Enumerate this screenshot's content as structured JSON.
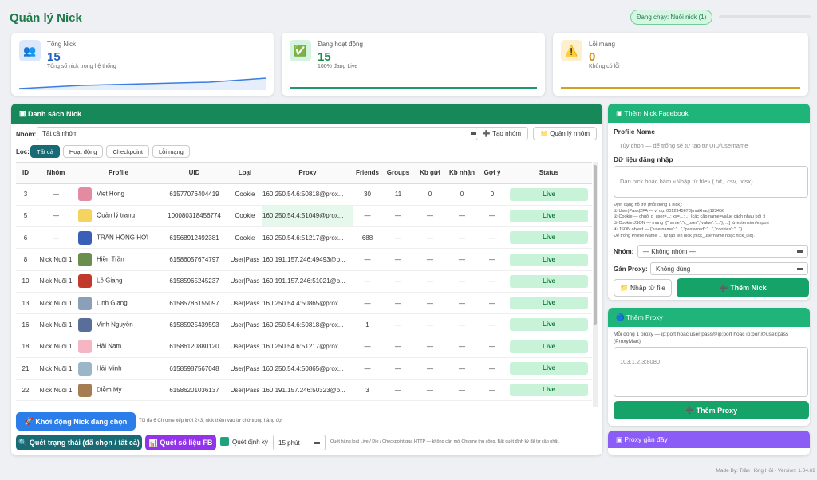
{
  "header": {
    "title": "Quản lý Nick",
    "status": "Đang chạy: Nuôi nick (1)"
  },
  "stats": [
    {
      "label": "Tổng Nick",
      "value": 15,
      "sub": "Tổng số nick trong hệ thống"
    },
    {
      "label": "Đang hoạt động",
      "value": 15,
      "sub": "100% đang Live"
    },
    {
      "label": "Lỗi mạng",
      "value": 0,
      "sub": "Không có lỗi"
    }
  ],
  "list": {
    "title": "Danh sách Nick",
    "group_label": "Nhóm:",
    "group_select": "Tất cả nhóm",
    "create_group": "Tạo nhóm",
    "manage_group": "Quản lý nhóm",
    "filter_label": "Lọc:",
    "filters": [
      "Tất cả",
      "Hoạt động",
      "Checkpoint",
      "Lỗi mạng"
    ]
  },
  "table": {
    "columns": [
      "ID",
      "Nhóm",
      "Profile",
      "UID",
      "Loại",
      "Proxy",
      "Friends",
      "Groups",
      "Kb gửi",
      "Kb nhận",
      "Gợi ý",
      "Status"
    ],
    "rows": [
      [
        3,
        "—",
        "Viet Hong",
        "61577076404419",
        "Cookie",
        "160.250.54.6:50818@prox...",
        30,
        11,
        0,
        0,
        0,
        "Live"
      ],
      [
        5,
        "—",
        "Quản lý trang",
        "100080318456774",
        "Cookie",
        "160.250.54.4:51049@prox...",
        "—",
        "—",
        "—",
        "—",
        "—",
        "Live"
      ],
      [
        6,
        "—",
        "TRẦN HỒNG HỞI",
        "61568912492381",
        "Cookie",
        "160.250.54.6:51217@prox...",
        688,
        "—",
        "—",
        "—",
        "—",
        "Live"
      ],
      [
        8,
        "Nick Nuôi 1",
        "Hiền Trần",
        "61586057674797",
        "User|Pass",
        "160.191.157.246:49493@p...",
        "—",
        "—",
        "—",
        "—",
        "—",
        "Live"
      ],
      [
        10,
        "Nick Nuôi 1",
        "Lê Giang",
        "61585965245237",
        "User|Pass",
        "160.191.157.246:51021@p...",
        "—",
        "—",
        "—",
        "—",
        "—",
        "Live"
      ],
      [
        13,
        "Nick Nuôi 1",
        "Linh Giang",
        "61585786155097",
        "User|Pass",
        "160.250.54.4:50865@prox...",
        "—",
        "—",
        "—",
        "—",
        "—",
        "Live"
      ],
      [
        16,
        "Nick Nuôi 1",
        "Vinh Nguyễn",
        "61585925439593",
        "User|Pass",
        "160.250.54.6:50818@prox...",
        1,
        "—",
        "—",
        "—",
        "—",
        "Live"
      ],
      [
        18,
        "Nick Nuôi 1",
        "Hải Nam",
        "61586120880120",
        "User|Pass",
        "160.250.54.6:51217@prox...",
        "—",
        "—",
        "—",
        "—",
        "—",
        "Live"
      ],
      [
        21,
        "Nick Nuôi 1",
        "Hải Minh",
        "61585987567048",
        "User|Pass",
        "160.250.54.4:50865@prox...",
        "—",
        "—",
        "—",
        "—",
        "—",
        "Live"
      ],
      [
        22,
        "Nick Nuôi 1",
        "Diễm My",
        "61586201036137",
        "User|Pass",
        "160.191.157.246:50323@p...",
        3,
        "—",
        "—",
        "—",
        "—",
        "Live"
      ]
    ]
  },
  "actions": {
    "start": "Khởi động Nick đang chọn",
    "start_note": "Tối đa 6 Chrome xếp lưới 2×3; nick thêm vào tự chờ trong hàng đợi",
    "scan_status": "Quét trạng thái (đã chọn / tất cả)",
    "scan_fb": "Quét số liệu FB",
    "periodic": "Quét định kỳ",
    "interval": "15 phút",
    "scan_note": "Quét hàng loạt Live / Die / Checkpoint qua HTTP — không cần mở Chrome thủ công. Bật quét định kỳ để tự cập nhật."
  },
  "add_nick": {
    "title": "Thêm Nick Facebook",
    "profile_label": "Profile Name",
    "profile_placeholder": "Tùy chọn — để trống sẽ tự tạo từ UID/username",
    "login_label": "Dữ liệu đăng nhập",
    "login_placeholder": "Dán nick hoặc bấm «Nhập từ file» (.txt, .csv, .xlsx)",
    "help": [
      "Định dạng hỗ trợ (mỗi dòng 1 nick):",
      "① User|Pass|2FA — ví dụ: 0012345678|matkhau|123456",
      "② Cookie — chuỗi c_user=...; xs=...; ... (các cặp name=value cách nhau bởi ;)",
      "③ Cookie JSON — mảng [{\"name\":\"c_user\",\"value\":\"...\"}, ...] từ extension/export",
      "④ JSON object — {\"username\":\"...\",\"password\":\"...\",\"cookies\":\"...\"}",
      "Để trống Profile Name → tự tạo tên nick (nick_username hoặc nick_uid)."
    ],
    "group_label": "Nhóm:",
    "group_value": "— Không nhóm —",
    "proxy_label": "Gán Proxy:",
    "proxy_value": "Không dùng",
    "import": "Nhập từ file",
    "submit": "Thêm Nick"
  },
  "add_proxy": {
    "title": "Thêm Proxy",
    "desc": "Mỗi dòng 1 proxy — ip:port hoặc user:pass@ip:port hoặc ip:port@user:pass (ProxyMart)",
    "placeholder": "103.1.2.3:8080",
    "submit": "Thêm Proxy"
  },
  "recent_proxy": {
    "title": "Proxy gần đây"
  },
  "footer": "Made By: Trần Hồng Hởi - Version: 1.04.69"
}
